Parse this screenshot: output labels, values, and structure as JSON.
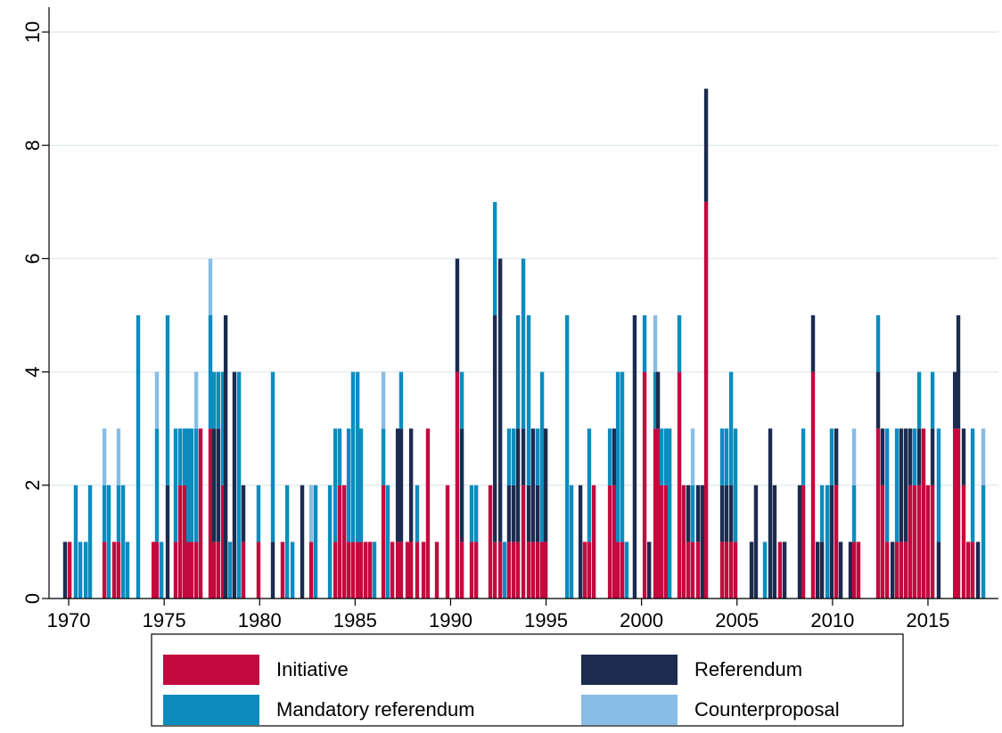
{
  "chart_data": {
    "type": "bar",
    "stacked": true,
    "x": [
      1969.81,
      1970.05,
      1970.37,
      1970.61,
      1970.89,
      1971.12,
      1971.87,
      1972.1,
      1972.38,
      1972.61,
      1972.85,
      1973.08,
      1973.64,
      1974.44,
      1974.62,
      1974.86,
      1975.18,
      1975.6,
      1975.84,
      1976.07,
      1976.26,
      1976.44,
      1976.68,
      1976.91,
      1977.42,
      1977.61,
      1977.84,
      1978.08,
      1978.22,
      1978.45,
      1978.68,
      1978.92,
      1979.15,
      1979.94,
      1980.69,
      1981.2,
      1981.44,
      1981.72,
      1982.23,
      1982.7,
      1982.93,
      1983.68,
      1983.96,
      1984.19,
      1984.43,
      1984.66,
      1984.89,
      1985.13,
      1985.31,
      1985.55,
      1985.78,
      1986.01,
      1986.48,
      1986.71,
      1986.95,
      1987.23,
      1987.41,
      1987.74,
      1987.93,
      1988.25,
      1988.58,
      1988.81,
      1989.28,
      1989.84,
      1990.35,
      1990.59,
      1991.1,
      1991.34,
      1992.08,
      1992.32,
      1992.6,
      1992.83,
      1993.06,
      1993.3,
      1993.53,
      1993.81,
      1994.09,
      1994.32,
      1994.56,
      1994.79,
      1994.98,
      1996.1,
      1996.33,
      1996.8,
      1997.03,
      1997.26,
      1997.5,
      1998.34,
      1998.57,
      1998.76,
      1998.99,
      1999.22,
      1999.64,
      2000.16,
      2000.4,
      2000.72,
      2000.86,
      2001.05,
      2001.28,
      2001.47,
      2001.98,
      2002.21,
      2002.45,
      2002.68,
      2002.96,
      2003.19,
      2003.38,
      2004.22,
      2004.45,
      2004.69,
      2004.92,
      2005.76,
      2005.99,
      2006.46,
      2006.74,
      2006.97,
      2007.25,
      2007.49,
      2008.28,
      2008.47,
      2008.98,
      2009.22,
      2009.45,
      2009.73,
      2009.96,
      2010.2,
      2010.43,
      2010.94,
      2011.13,
      2011.36,
      2012.39,
      2012.62,
      2012.86,
      2013.14,
      2013.37,
      2013.6,
      2013.84,
      2014.07,
      2014.3,
      2014.54,
      2014.77,
      2015.0,
      2015.24,
      2015.56,
      2016.41,
      2016.59,
      2016.87,
      2017.11,
      2017.34,
      2017.62,
      2017.9
    ],
    "series": [
      {
        "name": "Initiative",
        "color": "#c4093e",
        "values": [
          0,
          1,
          0,
          0,
          0,
          0,
          1,
          0,
          1,
          1,
          0,
          0,
          0,
          1,
          1,
          0,
          0,
          1,
          2,
          2,
          1,
          1,
          1,
          3,
          3,
          1,
          1,
          2,
          0,
          0,
          0,
          0,
          1,
          1,
          0,
          1,
          0,
          0,
          0,
          1,
          0,
          0,
          1,
          2,
          2,
          1,
          1,
          1,
          1,
          1,
          1,
          0,
          2,
          0,
          1,
          1,
          1,
          1,
          1,
          1,
          1,
          3,
          1,
          2,
          4,
          1,
          1,
          1,
          2,
          1,
          1,
          0,
          1,
          1,
          1,
          2,
          1,
          1,
          1,
          1,
          1,
          0,
          0,
          0,
          1,
          1,
          2,
          2,
          2,
          1,
          1,
          0,
          0,
          4,
          0,
          3,
          3,
          2,
          2,
          0,
          4,
          2,
          1,
          1,
          1,
          0,
          7,
          1,
          1,
          1,
          1,
          0,
          0,
          0,
          0,
          0,
          1,
          0,
          0,
          2,
          4,
          0,
          0,
          0,
          0,
          2,
          0,
          0,
          1,
          1,
          3,
          2,
          1,
          0,
          1,
          1,
          1,
          2,
          2,
          2,
          3,
          2,
          2,
          0,
          3,
          3,
          2,
          1,
          1,
          0,
          0
        ]
      },
      {
        "name": "Referendum",
        "color": "#1c2b50",
        "values": [
          1,
          0,
          0,
          0,
          0,
          0,
          0,
          0,
          0,
          0,
          0,
          0,
          0,
          0,
          0,
          0,
          2,
          0,
          0,
          0,
          0,
          0,
          0,
          0,
          0,
          2,
          2,
          0,
          5,
          0,
          4,
          0,
          1,
          0,
          1,
          0,
          0,
          0,
          2,
          0,
          0,
          0,
          0,
          0,
          0,
          0,
          0,
          0,
          0,
          0,
          0,
          0,
          0,
          0,
          0,
          2,
          2,
          0,
          2,
          0,
          0,
          0,
          0,
          0,
          2,
          2,
          0,
          0,
          0,
          4,
          5,
          0,
          1,
          1,
          2,
          1,
          1,
          2,
          1,
          0,
          2,
          0,
          0,
          2,
          0,
          0,
          0,
          0,
          1,
          0,
          0,
          0,
          5,
          0,
          1,
          0,
          1,
          0,
          0,
          0,
          0,
          0,
          1,
          0,
          1,
          2,
          2,
          1,
          1,
          1,
          0,
          1,
          2,
          0,
          3,
          2,
          0,
          1,
          2,
          0,
          1,
          1,
          1,
          0,
          2,
          1,
          1,
          1,
          0,
          0,
          1,
          1,
          0,
          1,
          0,
          2,
          2,
          1,
          0,
          1,
          0,
          0,
          1,
          1,
          1,
          2,
          1,
          0,
          0,
          1,
          0
        ]
      },
      {
        "name": "Mandatory referendum",
        "color": "#0b8cbf",
        "values": [
          0,
          0,
          2,
          1,
          1,
          2,
          1,
          2,
          0,
          1,
          2,
          1,
          5,
          0,
          2,
          1,
          3,
          2,
          1,
          1,
          2,
          2,
          2,
          0,
          2,
          1,
          1,
          2,
          0,
          1,
          0,
          4,
          0,
          1,
          3,
          0,
          2,
          1,
          0,
          0,
          2,
          2,
          2,
          1,
          0,
          2,
          3,
          3,
          2,
          0,
          0,
          1,
          1,
          2,
          0,
          0,
          1,
          0,
          0,
          1,
          0,
          0,
          0,
          0,
          0,
          1,
          1,
          1,
          0,
          2,
          0,
          1,
          1,
          1,
          2,
          3,
          3,
          0,
          1,
          3,
          0,
          5,
          2,
          0,
          0,
          2,
          0,
          1,
          0,
          3,
          3,
          1,
          0,
          1,
          0,
          1,
          0,
          1,
          1,
          3,
          1,
          0,
          0,
          1,
          0,
          0,
          0,
          1,
          1,
          2,
          2,
          0,
          0,
          1,
          0,
          0,
          0,
          0,
          0,
          1,
          0,
          0,
          1,
          2,
          1,
          0,
          0,
          0,
          1,
          0,
          1,
          0,
          2,
          0,
          2,
          0,
          0,
          0,
          1,
          1,
          0,
          0,
          1,
          2,
          0,
          0,
          0,
          0,
          2,
          0,
          2
        ]
      },
      {
        "name": "Counterproposal",
        "color": "#87bde6",
        "values": [
          0,
          0,
          0,
          0,
          0,
          0,
          1,
          0,
          0,
          1,
          0,
          0,
          0,
          0,
          1,
          0,
          0,
          0,
          0,
          0,
          0,
          0,
          1,
          0,
          1,
          0,
          0,
          0,
          0,
          0,
          0,
          0,
          0,
          0,
          0,
          0,
          0,
          0,
          0,
          1,
          0,
          0,
          0,
          0,
          0,
          0,
          0,
          0,
          0,
          0,
          0,
          0,
          1,
          0,
          0,
          0,
          0,
          0,
          0,
          0,
          0,
          0,
          0,
          0,
          0,
          0,
          0,
          0,
          0,
          0,
          0,
          0,
          0,
          0,
          0,
          0,
          0,
          0,
          0,
          0,
          0,
          0,
          0,
          0,
          0,
          0,
          0,
          0,
          0,
          0,
          0,
          0,
          0,
          0,
          0,
          1,
          0,
          0,
          0,
          0,
          0,
          0,
          0,
          1,
          0,
          0,
          0,
          0,
          0,
          0,
          0,
          0,
          0,
          0,
          0,
          0,
          0,
          0,
          0,
          0,
          0,
          0,
          0,
          0,
          0,
          0,
          0,
          0,
          1,
          0,
          0,
          0,
          0,
          0,
          0,
          0,
          0,
          0,
          0,
          0,
          0,
          0,
          0,
          0,
          0,
          0,
          0,
          0,
          0,
          0,
          1
        ]
      }
    ],
    "xlim": [
      1968.97,
      2018.69
    ],
    "xticks": [
      1970,
      1975,
      1980,
      1985,
      1990,
      1995,
      2000,
      2005,
      2010,
      2015
    ],
    "ylim": [
      0,
      10.44
    ],
    "yticks": [
      0,
      2,
      4,
      6,
      8,
      10
    ],
    "grid": true,
    "legend": "bottom"
  }
}
